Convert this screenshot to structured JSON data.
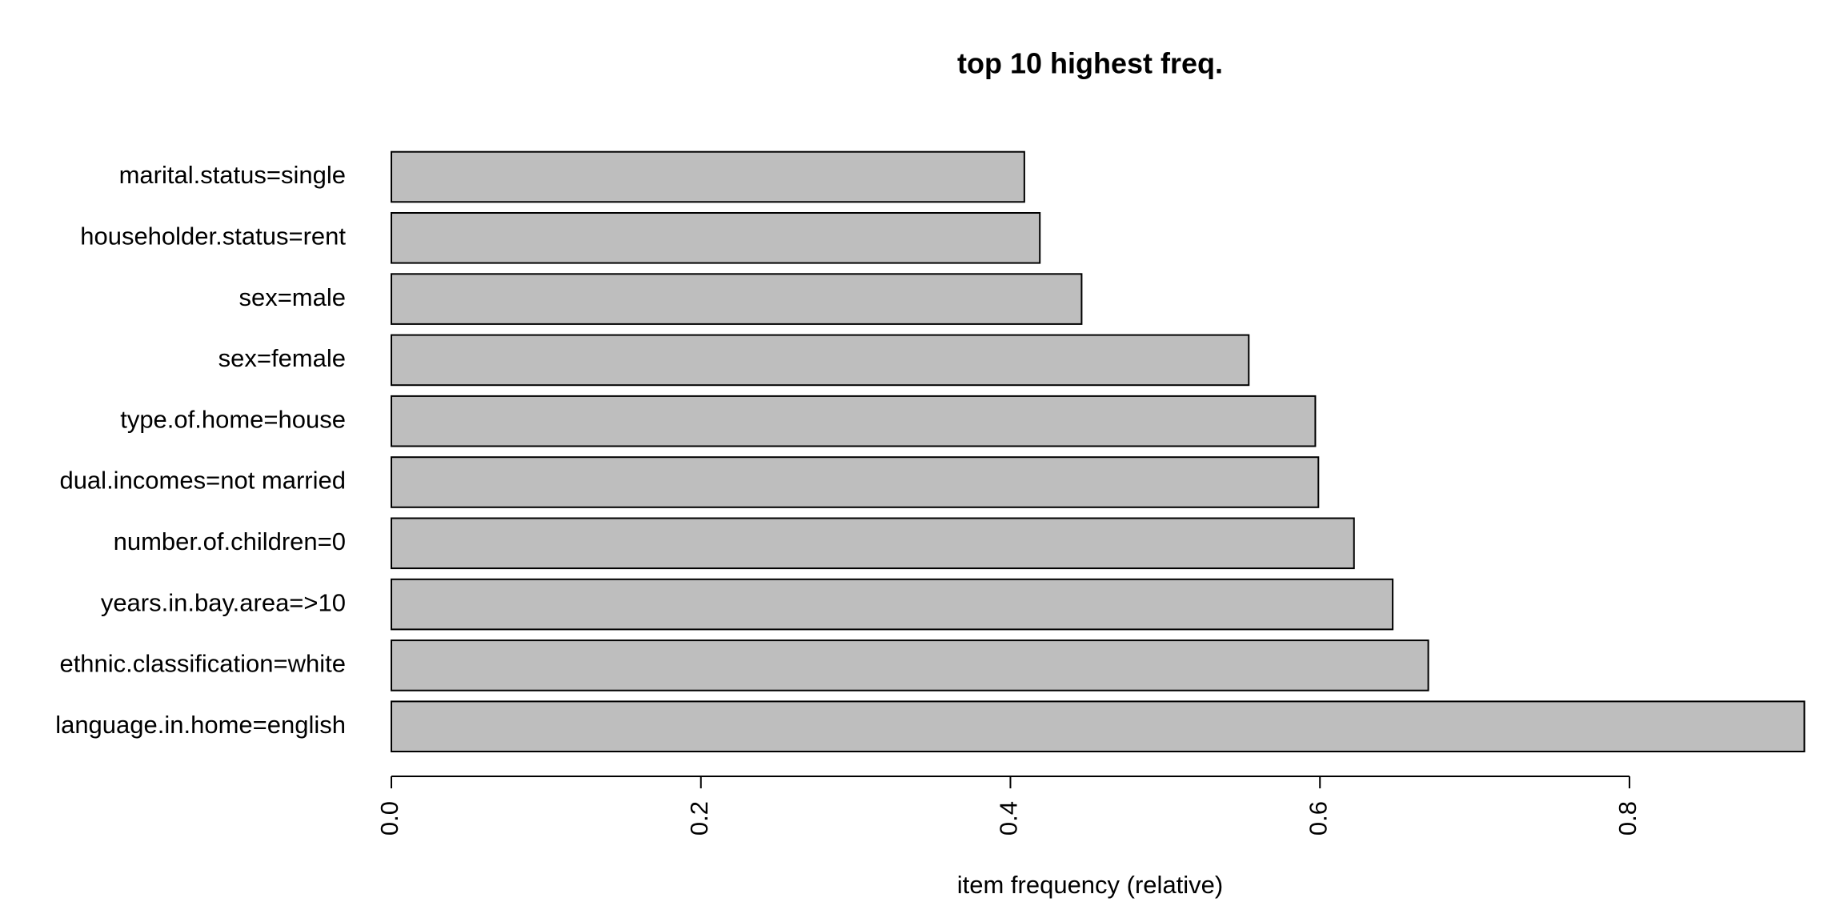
{
  "chart_data": {
    "type": "barh",
    "title": "top 10 highest freq.",
    "xlabel": "item frequency (relative)",
    "categories": [
      "marital.status=single",
      "householder.status=rent",
      "sex=male",
      "sex=female",
      "type.of.home=house",
      "dual.incomes=not married",
      "number.of.children=0",
      "years.in.bay.area=>10",
      "ethnic.classification=white",
      "language.in.home=english"
    ],
    "values": [
      0.409,
      0.419,
      0.446,
      0.554,
      0.597,
      0.599,
      0.622,
      0.647,
      0.67,
      0.913
    ],
    "color": "#bebebe",
    "xlim": [
      0,
      0.92
    ],
    "xticks": [
      {
        "value": 0,
        "label": "0.0"
      },
      0.2,
      0.4,
      0.6,
      0.8
    ]
  }
}
